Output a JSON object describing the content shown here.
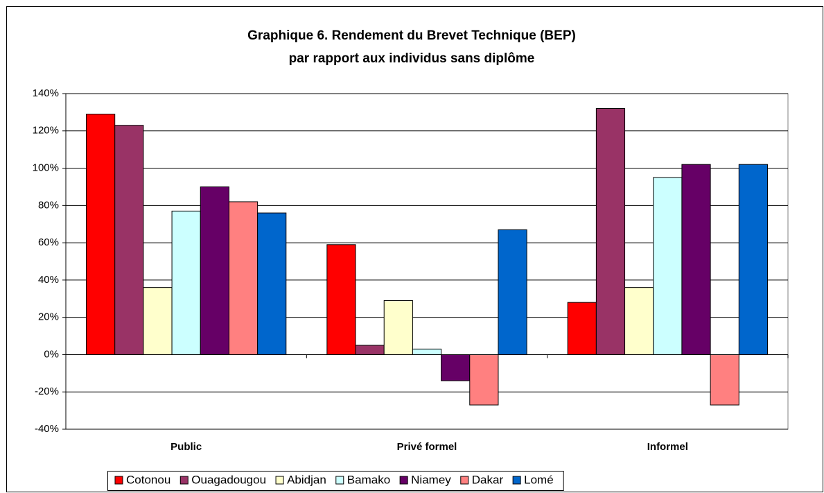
{
  "chart_data": {
    "type": "bar",
    "title": [
      "Graphique 6. Rendement du Brevet Technique (BEP)",
      "par rapport aux individus sans diplôme"
    ],
    "categories": [
      "Public",
      "Privé formel",
      "Informel"
    ],
    "series": [
      {
        "name": "Cotonou",
        "color": "#ff0000",
        "values": [
          129,
          59,
          28
        ]
      },
      {
        "name": "Ouagadougou",
        "color": "#993366",
        "values": [
          123,
          5,
          132
        ]
      },
      {
        "name": "Abidjan",
        "color": "#ffffcc",
        "values": [
          36,
          29,
          36
        ]
      },
      {
        "name": "Bamako",
        "color": "#ccffff",
        "values": [
          77,
          3,
          95
        ]
      },
      {
        "name": "Niamey",
        "color": "#660066",
        "values": [
          90,
          -14,
          102
        ]
      },
      {
        "name": "Dakar",
        "color": "#ff8080",
        "values": [
          82,
          -27,
          -27
        ]
      },
      {
        "name": "Lomé",
        "color": "#0066cc",
        "values": [
          76,
          67,
          102
        ]
      }
    ],
    "ylim": [
      -40,
      140
    ],
    "yticks": [
      {
        "value": -40,
        "label": "-40%"
      },
      {
        "value": -20,
        "label": "-20%"
      },
      {
        "value": 0,
        "label": "0%"
      },
      {
        "value": 20,
        "label": "20%"
      },
      {
        "value": 40,
        "label": "40%"
      },
      {
        "value": 60,
        "label": "60%"
      },
      {
        "value": 80,
        "label": "80%"
      },
      {
        "value": 100,
        "label": "100%"
      },
      {
        "value": 120,
        "label": "120%"
      },
      {
        "value": 140,
        "label": "140%"
      }
    ],
    "grid": true,
    "legend": "bottom"
  }
}
